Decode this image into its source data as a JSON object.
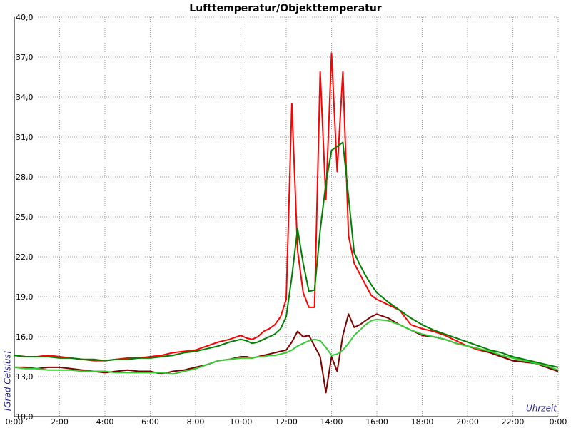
{
  "chart_data": {
    "type": "line",
    "title": "Lufttemperatur/Objekttemperatur",
    "y_label": "[Grad Celsius]",
    "x_label": "Uhrzeit",
    "x": [
      0,
      0.5,
      1,
      1.5,
      2,
      2.5,
      3,
      3.5,
      4,
      4.5,
      5,
      5.5,
      6,
      6.5,
      7,
      7.5,
      8,
      8.5,
      9,
      9.5,
      10,
      10.25,
      10.5,
      10.75,
      11,
      11.25,
      11.5,
      11.75,
      12,
      12.25,
      12.5,
      12.75,
      13,
      13.25,
      13.5,
      13.75,
      14,
      14.25,
      14.5,
      14.75,
      15,
      15.25,
      15.5,
      15.75,
      16,
      16.5,
      17,
      17.5,
      18,
      18.5,
      19,
      19.5,
      20,
      20.5,
      21,
      21.5,
      22,
      22.5,
      23,
      23.5,
      24
    ],
    "series": [
      {
        "color": "#ff0000",
        "values": [
          14.6,
          14.5,
          14.5,
          14.6,
          14.5,
          14.4,
          14.3,
          14.2,
          14.2,
          14.3,
          14.4,
          14.4,
          14.5,
          14.6,
          14.8,
          14.9,
          15.0,
          15.3,
          15.6,
          15.8,
          16.1,
          15.9,
          15.8,
          16.0,
          16.4,
          16.6,
          16.9,
          17.5,
          18.8,
          33.5,
          22.5,
          19.3,
          18.2,
          18.2,
          35.9,
          26.3,
          37.3,
          28.4,
          35.9,
          23.6,
          21.5,
          20.7,
          19.9,
          19.1,
          18.8,
          18.4,
          18.0,
          16.9,
          16.6,
          16.4,
          16.1,
          15.7,
          15.3,
          15.0,
          14.8,
          14.5,
          14.2,
          14.1,
          14.0,
          13.7,
          13.4
        ]
      },
      {
        "color": "#800000",
        "values": [
          13.7,
          13.7,
          13.6,
          13.7,
          13.7,
          13.6,
          13.5,
          13.4,
          13.3,
          13.4,
          13.5,
          13.4,
          13.4,
          13.2,
          13.4,
          13.5,
          13.7,
          13.9,
          14.2,
          14.3,
          14.5,
          14.5,
          14.4,
          14.5,
          14.6,
          14.7,
          14.8,
          14.9,
          15.0,
          15.6,
          16.4,
          16.0,
          16.1,
          15.3,
          14.5,
          11.8,
          14.5,
          13.4,
          16.1,
          17.7,
          16.7,
          16.9,
          17.2,
          17.5,
          17.7,
          17.4,
          16.9,
          16.5,
          16.1,
          16.0,
          15.8,
          15.5,
          15.3,
          15.1,
          14.8,
          14.5,
          14.2,
          14.1,
          14.0,
          13.7,
          13.4
        ]
      },
      {
        "color": "#008000",
        "values": [
          14.6,
          14.5,
          14.5,
          14.5,
          14.4,
          14.4,
          14.3,
          14.3,
          14.2,
          14.3,
          14.3,
          14.4,
          14.4,
          14.5,
          14.6,
          14.8,
          14.9,
          15.1,
          15.3,
          15.6,
          15.8,
          15.7,
          15.5,
          15.6,
          15.8,
          16.0,
          16.2,
          16.6,
          17.5,
          20.5,
          24.1,
          21.5,
          19.4,
          19.5,
          24.0,
          27.5,
          30.0,
          30.3,
          30.6,
          26.5,
          22.3,
          21.4,
          20.6,
          19.9,
          19.3,
          18.6,
          18.0,
          17.4,
          16.9,
          16.5,
          16.2,
          15.9,
          15.6,
          15.3,
          15.0,
          14.8,
          14.5,
          14.3,
          14.1,
          13.9,
          13.7
        ]
      },
      {
        "color": "#33cc33",
        "values": [
          13.7,
          13.6,
          13.6,
          13.5,
          13.5,
          13.5,
          13.4,
          13.4,
          13.4,
          13.3,
          13.3,
          13.3,
          13.3,
          13.3,
          13.2,
          13.4,
          13.6,
          13.9,
          14.2,
          14.3,
          14.4,
          14.4,
          14.4,
          14.5,
          14.5,
          14.6,
          14.6,
          14.7,
          14.8,
          15.0,
          15.3,
          15.5,
          15.7,
          15.8,
          15.7,
          15.2,
          14.6,
          14.7,
          15.0,
          15.5,
          16.1,
          16.5,
          16.9,
          17.2,
          17.3,
          17.2,
          16.9,
          16.5,
          16.2,
          16.0,
          15.8,
          15.5,
          15.3,
          15.1,
          14.9,
          14.6,
          14.4,
          14.2,
          14.0,
          13.8,
          13.5
        ]
      }
    ],
    "xlim": [
      0,
      24
    ],
    "xticks": [
      {
        "value": 0,
        "label": "0:00"
      },
      {
        "value": 2,
        "label": "2:00"
      },
      {
        "value": 4,
        "label": "4:00"
      },
      {
        "value": 6,
        "label": "6:00"
      },
      {
        "value": 8,
        "label": "8:00"
      },
      {
        "value": 10,
        "label": "10:00"
      },
      {
        "value": 12,
        "label": "12:00"
      },
      {
        "value": 14,
        "label": "14:00"
      },
      {
        "value": 16,
        "label": "16:00"
      },
      {
        "value": 18,
        "label": "18:00"
      },
      {
        "value": 20,
        "label": "20:00"
      },
      {
        "value": 22,
        "label": "22:00"
      },
      {
        "value": 24,
        "label": "0:00"
      }
    ],
    "ylim": [
      10,
      40
    ],
    "yticks": [
      {
        "value": 10,
        "label": "10,0"
      },
      {
        "value": 13,
        "label": "13,0"
      },
      {
        "value": 16,
        "label": "16,0"
      },
      {
        "value": 19,
        "label": "19,0"
      },
      {
        "value": 22,
        "label": "22,0"
      },
      {
        "value": 25,
        "label": "25,0"
      },
      {
        "value": 28,
        "label": "28,0"
      },
      {
        "value": 31,
        "label": "31,0"
      },
      {
        "value": 34,
        "label": "34,0"
      },
      {
        "value": 37,
        "label": "37,0"
      },
      {
        "value": 40,
        "label": "40,0"
      }
    ],
    "grid": true
  }
}
